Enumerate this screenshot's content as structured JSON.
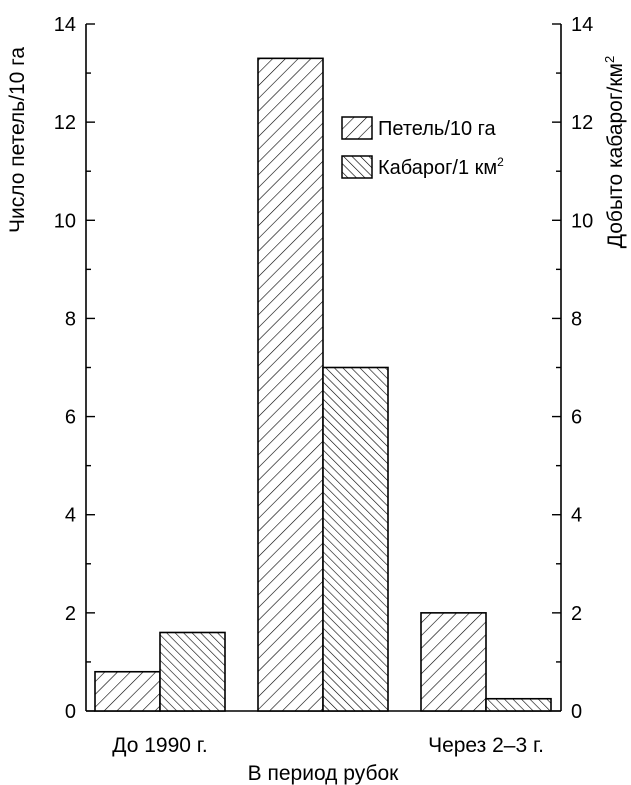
{
  "chart_data": {
    "type": "bar",
    "categories": [
      "До 1990 г.",
      "В период рубок",
      "Через 2–3 г."
    ],
    "series": [
      {
        "name": "Петель/10 га",
        "values": [
          0.8,
          13.3,
          2.0
        ],
        "pattern": "hatch-right"
      },
      {
        "name": "Кабарог/1 км",
        "values": [
          1.6,
          7.0,
          0.25
        ],
        "pattern": "hatch-left"
      }
    ],
    "legend_superscript": "2",
    "ylabel_left": "Число петель/10 га",
    "ylabel_right": "Добыто кабарог/км",
    "ylabel_right_superscript": "2",
    "ylim": [
      0,
      14
    ],
    "yticks": [
      "0",
      "2",
      "4",
      "6",
      "8",
      "10",
      "12",
      "14"
    ],
    "legend_position": "top-right",
    "grid": false,
    "colors": {
      "bar_stroke": "#000000",
      "hatch": "#000000",
      "background": "#ffffff"
    }
  }
}
